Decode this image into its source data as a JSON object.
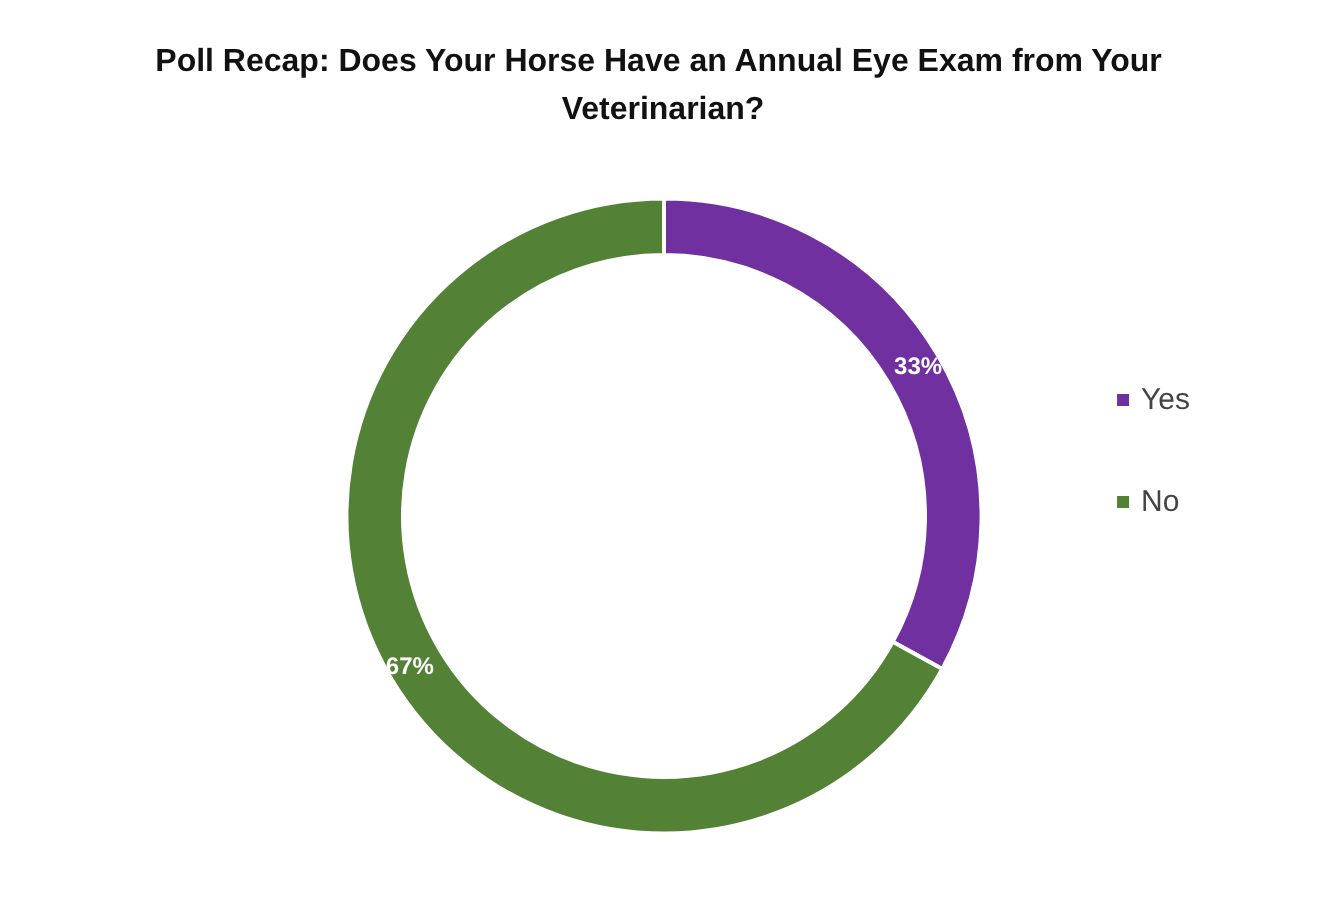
{
  "chart_data": {
    "type": "donut",
    "title": "Poll Recap: Does Your Horse Have an Annual Eye Exam from Your Veterinarian?",
    "categories": [
      "Yes",
      "No"
    ],
    "values": [
      33,
      67
    ],
    "colors": [
      "#7030a0",
      "#538135"
    ],
    "value_labels": [
      "33%",
      "67%"
    ],
    "legend": "right"
  }
}
